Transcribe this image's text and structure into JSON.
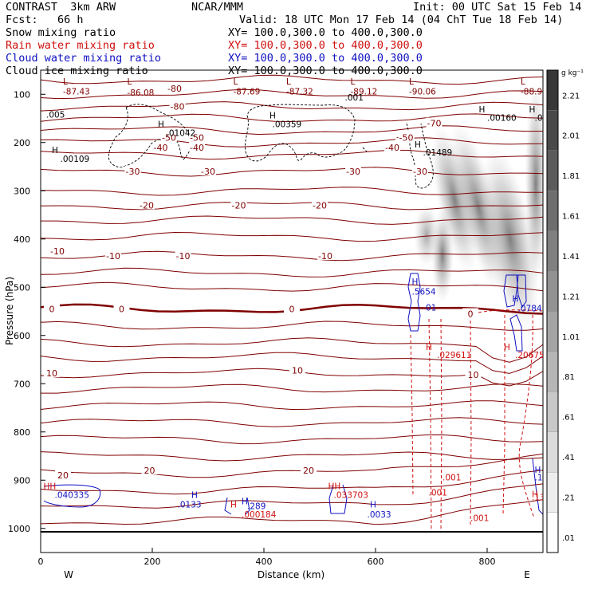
{
  "header": {
    "model": "CONTRAST  3km ARW",
    "center": "NCAR/MMM",
    "init": "Init: 00 UTC Sat 15 Feb 14",
    "fcst": "Fcst:   66 h",
    "valid": "Valid: 18 UTC Mon 17 Feb 14 (04 ChT Tue 18 Feb 14)"
  },
  "fields": [
    {
      "name": "Snow mixing ratio",
      "xy": "XY= 100.0,300.0 to 400.0,300.0",
      "color": "#000000"
    },
    {
      "name": "Rain water mixing ratio",
      "xy": "XY= 100.0,300.0 to 400.0,300.0",
      "color": "#d01010"
    },
    {
      "name": "Cloud water mixing ratio",
      "xy": "XY= 100.0,300.0 to 400.0,300.0",
      "color": "#1010c0"
    },
    {
      "name": "Cloud ice mixing ratio",
      "xy": "XY= 100.0,300.0 to 400.0,300.0",
      "color": "#000000"
    }
  ],
  "colors": {
    "temperature": "#800000",
    "rain": "#d01010",
    "cloud_water": "#1010c0",
    "snow": "#000000"
  },
  "chart_data": {
    "type": "contour",
    "xlabel": "Distance (km)",
    "ylabel": "Pressure (hPa)",
    "xlim": [
      0,
      900
    ],
    "ylim": [
      1050,
      50
    ],
    "x_ticks": [
      "0",
      "200",
      "400",
      "600",
      "800"
    ],
    "y_ticks": [
      "100",
      "200",
      "300",
      "400",
      "500",
      "600",
      "700",
      "800",
      "900",
      "1000"
    ],
    "x_end_labels": {
      "left": "W",
      "right": "E"
    },
    "colorbar": {
      "unit": "g kg⁻¹",
      "levels": [
        "2.21",
        "2.01",
        "1.81",
        "1.61",
        "1.41",
        "1.21",
        "1.01",
        ".81",
        ".61",
        ".41",
        ".21",
        ".01"
      ]
    },
    "temperature_labels": [
      {
        "x": 240,
        "p": 88,
        "text": "-80"
      },
      {
        "x": 245,
        "p": 125,
        "text": "-80"
      },
      {
        "x": 705,
        "p": 160,
        "text": "-70"
      },
      {
        "x": 230,
        "p": 190,
        "text": "-50"
      },
      {
        "x": 280,
        "p": 190,
        "text": "-50"
      },
      {
        "x": 215,
        "p": 210,
        "text": "-40"
      },
      {
        "x": 280,
        "p": 210,
        "text": "-40"
      },
      {
        "x": 630,
        "p": 210,
        "text": "-40"
      },
      {
        "x": 650,
        "p": 188,
        "text": "-50"
      },
      {
        "x": 655,
        "p": 190,
        "text": "-50"
      },
      {
        "x": 165,
        "p": 260,
        "text": "-30"
      },
      {
        "x": 300,
        "p": 260,
        "text": "-30"
      },
      {
        "x": 560,
        "p": 260,
        "text": "-30"
      },
      {
        "x": 680,
        "p": 260,
        "text": "-30"
      },
      {
        "x": 190,
        "p": 330,
        "text": "-20"
      },
      {
        "x": 355,
        "p": 330,
        "text": "-20"
      },
      {
        "x": 500,
        "p": 330,
        "text": "-20"
      },
      {
        "x": 30,
        "p": 425,
        "text": "-10"
      },
      {
        "x": 130,
        "p": 435,
        "text": "-10"
      },
      {
        "x": 255,
        "p": 435,
        "text": "-10"
      },
      {
        "x": 510,
        "p": 435,
        "text": "-10"
      },
      {
        "x": 20,
        "p": 545,
        "text": "0"
      },
      {
        "x": 145,
        "p": 545,
        "text": "0"
      },
      {
        "x": 450,
        "p": 545,
        "text": "0"
      },
      {
        "x": 770,
        "p": 555,
        "text": "0"
      },
      {
        "x": 20,
        "p": 678,
        "text": "10"
      },
      {
        "x": 460,
        "p": 672,
        "text": "10"
      },
      {
        "x": 775,
        "p": 681,
        "text": "10"
      },
      {
        "x": 40,
        "p": 890,
        "text": "20"
      },
      {
        "x": 195,
        "p": 880,
        "text": "20"
      },
      {
        "x": 480,
        "p": 880,
        "text": "20"
      }
    ],
    "extrema_labels": [
      {
        "x": 40,
        "p": 80,
        "text": "L",
        "color": "#800000"
      },
      {
        "x": 40,
        "p": 100,
        "text": "-87.43",
        "color": "#800000"
      },
      {
        "x": 155,
        "p": 80,
        "text": "L",
        "color": "#800000"
      },
      {
        "x": 155,
        "p": 103,
        "text": "-86.08",
        "color": "#800000"
      },
      {
        "x": 345,
        "p": 80,
        "text": "L",
        "color": "#800000"
      },
      {
        "x": 345,
        "p": 100,
        "text": "-87.69",
        "color": "#800000"
      },
      {
        "x": 440,
        "p": 80,
        "text": "L",
        "color": "#800000"
      },
      {
        "x": 440,
        "p": 100,
        "text": "-87.32",
        "color": "#800000"
      },
      {
        "x": 555,
        "p": 80,
        "text": "L",
        "color": "#800000"
      },
      {
        "x": 555,
        "p": 100,
        "text": "-89.12",
        "color": "#800000"
      },
      {
        "x": 660,
        "p": 80,
        "text": "L",
        "color": "#800000"
      },
      {
        "x": 660,
        "p": 100,
        "text": "-90.06",
        "color": "#800000"
      },
      {
        "x": 860,
        "p": 80,
        "text": "L",
        "color": "#800000"
      },
      {
        "x": 860,
        "p": 100,
        "text": "-88.98",
        "color": "#800000"
      },
      {
        "x": 10,
        "p": 148,
        "text": ".005",
        "color": "#000000"
      },
      {
        "x": 545,
        "p": 113,
        "text": ".001",
        "color": "#000000"
      },
      {
        "x": 210,
        "p": 168,
        "text": "H",
        "color": "#000000"
      },
      {
        "x": 225,
        "p": 186,
        "text": ".01042",
        "color": "#000000"
      },
      {
        "x": 410,
        "p": 150,
        "text": "H",
        "color": "#000000"
      },
      {
        "x": 415,
        "p": 168,
        "text": ".00359",
        "color": "#000000"
      },
      {
        "x": 20,
        "p": 222,
        "text": "H",
        "color": "#000000"
      },
      {
        "x": 35,
        "p": 240,
        "text": ".00109",
        "color": "#000000"
      },
      {
        "x": 785,
        "p": 138,
        "text": "H",
        "color": "#000000"
      },
      {
        "x": 800,
        "p": 155,
        "text": ".00160",
        "color": "#000000"
      },
      {
        "x": 875,
        "p": 138,
        "text": "H",
        "color": "#000000"
      },
      {
        "x": 885,
        "p": 155,
        "text": ".005",
        "color": "#000000"
      },
      {
        "x": 670,
        "p": 210,
        "text": "H",
        "color": "#000000"
      },
      {
        "x": 685,
        "p": 227,
        "text": ".01489",
        "color": "#000000"
      },
      {
        "x": 665,
        "p": 495,
        "text": "H",
        "color": "#1010c0"
      },
      {
        "x": 665,
        "p": 515,
        "text": ".5654",
        "color": "#1010c0"
      },
      {
        "x": 690,
        "p": 548,
        "text": "01",
        "color": "#1010c0"
      },
      {
        "x": 845,
        "p": 530,
        "text": "H",
        "color": "#1010c0"
      },
      {
        "x": 855,
        "p": 550,
        "text": ".0784",
        "color": "#1010c0"
      },
      {
        "x": 690,
        "p": 630,
        "text": "H",
        "color": "#d01010"
      },
      {
        "x": 710,
        "p": 647,
        "text": ".029611",
        "color": "#d01010"
      },
      {
        "x": 830,
        "p": 630,
        "text": "H",
        "color": "#d01010"
      },
      {
        "x": 850,
        "p": 647,
        "text": ".206751",
        "color": "#d01010"
      },
      {
        "x": 5,
        "p": 919,
        "text": "HH",
        "color": "#d01010"
      },
      {
        "x": 25,
        "p": 937,
        "text": ".040335",
        "color": "#1010c0"
      },
      {
        "x": 270,
        "p": 937,
        "text": "H",
        "color": "#1010c0"
      },
      {
        "x": 245,
        "p": 957,
        "text": ".0133",
        "color": "#1010c0"
      },
      {
        "x": 340,
        "p": 957,
        "text": "H",
        "color": "#d01010"
      },
      {
        "x": 360,
        "p": 950,
        "text": "H",
        "color": "#1010c0"
      },
      {
        "x": 370,
        "p": 960,
        "text": ".289",
        "color": "#1010c0"
      },
      {
        "x": 360,
        "p": 977,
        "text": ".000184",
        "color": "#d01010"
      },
      {
        "x": 515,
        "p": 919,
        "text": "HH",
        "color": "#d01010"
      },
      {
        "x": 525,
        "p": 937,
        "text": ".033703",
        "color": "#d01010"
      },
      {
        "x": 590,
        "p": 957,
        "text": "H",
        "color": "#1010c0"
      },
      {
        "x": 585,
        "p": 977,
        "text": ".0033",
        "color": "#1010c0"
      },
      {
        "x": 695,
        "p": 932,
        "text": ".001",
        "color": "#d01010"
      },
      {
        "x": 720,
        "p": 900,
        "text": ".001",
        "color": "#d01010"
      },
      {
        "x": 770,
        "p": 985,
        "text": ".001",
        "color": "#d01010"
      },
      {
        "x": 880,
        "p": 935,
        "text": "H",
        "color": "#d01010"
      },
      {
        "x": 880,
        "p": 942,
        "text": ".13",
        "color": "#d01010"
      },
      {
        "x": 885,
        "p": 885,
        "text": "H",
        "color": "#1010c0"
      },
      {
        "x": 885,
        "p": 900,
        "text": ".13",
        "color": "#1010c0"
      }
    ]
  }
}
